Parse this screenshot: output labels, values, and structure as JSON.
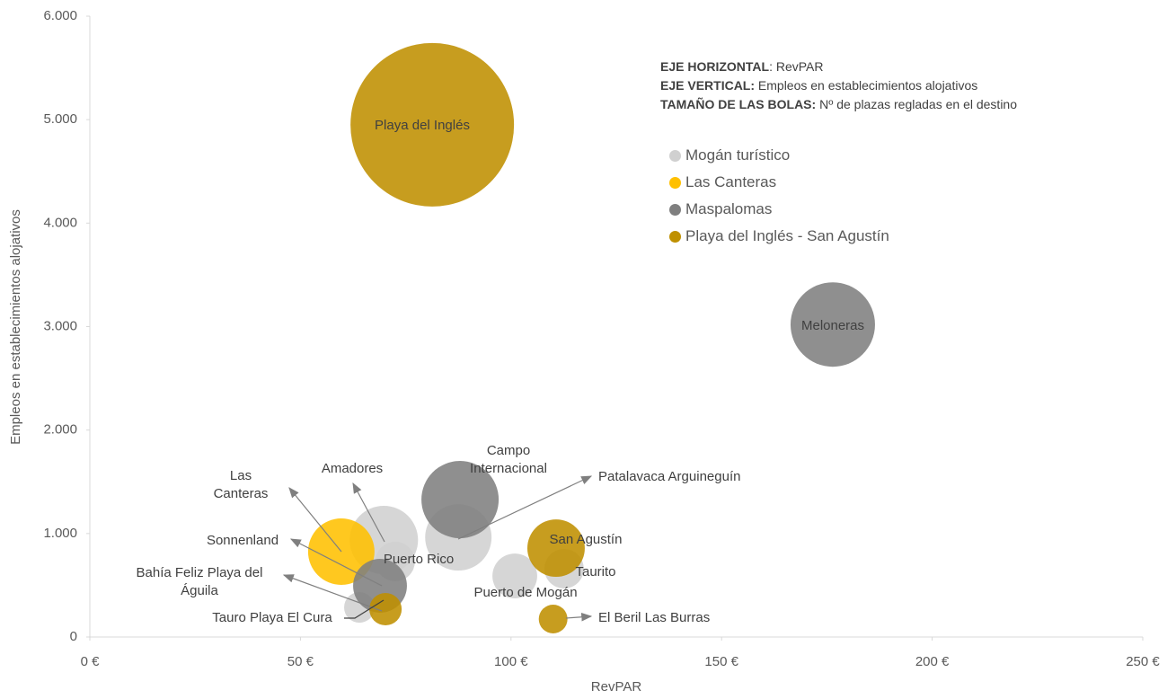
{
  "chart_data": {
    "type": "bubble",
    "x_label": "RevPAR",
    "y_label": "Empleos en establecimientos alojativos",
    "xlim": [
      0,
      250
    ],
    "xticks": [
      {
        "value": 0,
        "label": "0 €"
      },
      {
        "value": 50,
        "label": "50 €"
      },
      {
        "value": 100,
        "label": "100 €"
      },
      {
        "value": 150,
        "label": "150 €"
      },
      {
        "value": 200,
        "label": "200 €"
      },
      {
        "value": 250,
        "label": "250 €"
      }
    ],
    "ylim": [
      0,
      6000
    ],
    "yticks": [
      0,
      {
        "value": 1000,
        "label": "1.000"
      },
      {
        "value": 2000,
        "label": "2.000"
      },
      {
        "value": 3000,
        "label": "3.000"
      },
      {
        "value": 4000,
        "label": "4.000"
      },
      {
        "value": 5000,
        "label": "5.000"
      },
      {
        "value": 6000,
        "label": "6.000"
      }
    ],
    "notes": [
      {
        "bold": "EJE HORIZONTAL",
        "text": ": RevPAR"
      },
      {
        "bold": "EJE VERTICAL:",
        "text": " Empleos en establecimientos alojativos"
      },
      {
        "bold": "TAMAÑO DE LAS BOLAS:",
        "text": " Nº de plazas regladas en el destino"
      }
    ],
    "series": [
      {
        "name": "Mogán turístico",
        "color": "#d0d0d0",
        "labels": [
          "Amadores",
          "Patalavaca Arguineguín",
          "Puerto Rico",
          "Puerto de Mogán",
          "Taurito",
          "Tauro Playa El Cura"
        ],
        "x": [
          69.8,
          87.5,
          72.5,
          100.9,
          112.6,
          64
        ],
        "values": [
          937,
          963,
          730,
          590,
          660,
          286
        ],
        "sizes": [
          10500,
          9900,
          3500,
          4500,
          3500,
          2100
        ]
      },
      {
        "name": "Las Canteras",
        "color": "#ffc000",
        "labels": [
          "Las Canteras"
        ],
        "x": [
          59.7
        ],
        "values": [
          825
        ],
        "sizes": [
          9900
        ]
      },
      {
        "name": "Maspalomas",
        "color": "#7f7f7f",
        "labels": [
          "Meloneras",
          "Campo Internacional",
          "Sonnenland"
        ],
        "x": [
          176.4,
          87.9,
          68.9
        ],
        "values": [
          3020,
          1328,
          495
        ],
        "sizes": [
          16000,
          13400,
          6500
        ]
      },
      {
        "name": "Playa del Inglés - San Agustín",
        "color": "#bf9000",
        "labels": [
          "Playa del Inglés",
          "San Agustín",
          "Bahía Feliz Playa del Águila",
          "El Beril Las Burras"
        ],
        "x": [
          81.3,
          110.7,
          70.2,
          110
        ],
        "values": [
          4950,
          859,
          269,
          174
        ],
        "sizes": [
          60000,
          7400,
          2350,
          1850
        ]
      }
    ]
  }
}
